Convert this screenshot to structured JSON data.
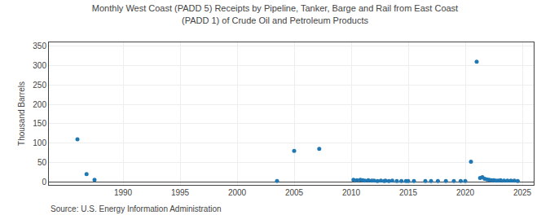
{
  "chart_data": {
    "type": "scatter",
    "title": "Monthly West Coast (PADD 5) Receipts by Pipeline, Tanker, Barge and Rail from East Coast\n(PADD 1) of Crude Oil and Petroleum Products",
    "ylabel": "Thousand Barrels",
    "annotations": [
      "Source: U.S. Energy Information Administration"
    ],
    "x": [
      1986.0,
      1986.8,
      1987.5,
      2003.5,
      2005.0,
      2007.2,
      2010.2,
      2010.5,
      2010.8,
      2011.0,
      2011.2,
      2011.5,
      2011.8,
      2012.0,
      2012.3,
      2012.6,
      2012.9,
      2013.0,
      2013.3,
      2013.6,
      2014.0,
      2014.4,
      2014.8,
      2015.0,
      2015.5,
      2016.5,
      2017.0,
      2017.6,
      2018.3,
      2019.0,
      2019.6,
      2020.0,
      2020.5,
      2021.0,
      2021.3,
      2021.5,
      2021.7,
      2021.9,
      2022.1,
      2022.3,
      2022.5,
      2022.7,
      2022.9,
      2023.1,
      2023.4,
      2023.7,
      2024.0,
      2024.3,
      2024.6
    ],
    "values": [
      110,
      20,
      5,
      2,
      80,
      85,
      5,
      4,
      5,
      4,
      3,
      4,
      3,
      3,
      2,
      3,
      2,
      3,
      2,
      3,
      2,
      2,
      2,
      2,
      2,
      2,
      2,
      2,
      2,
      2,
      2,
      2,
      52,
      310,
      10,
      12,
      8,
      6,
      5,
      4,
      4,
      3,
      3,
      4,
      3,
      3,
      3,
      3,
      2
    ],
    "xlim": [
      1983.5,
      2026
    ],
    "ylim": [
      -8,
      360
    ],
    "xticks": [
      1990,
      1995,
      2000,
      2005,
      2010,
      2015,
      2020,
      2025
    ],
    "yticks": [
      0,
      50,
      100,
      150,
      200,
      250,
      300,
      350
    ],
    "grid": true
  }
}
